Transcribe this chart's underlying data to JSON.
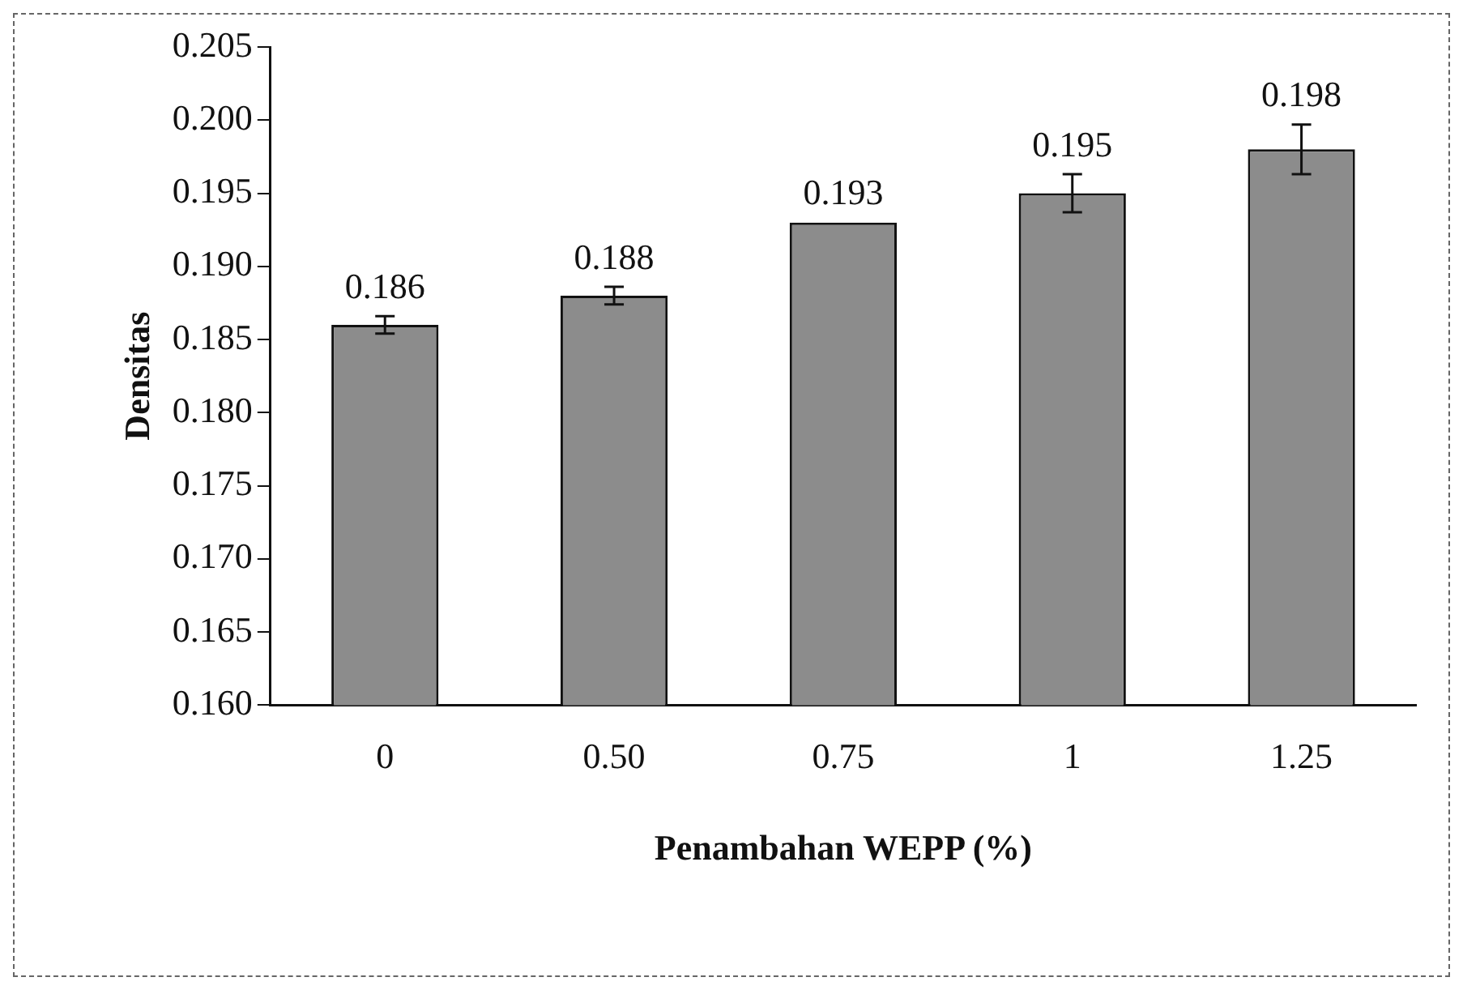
{
  "chart_data": {
    "type": "bar",
    "xlabel": "Penambahan WEPP (%)",
    "ylabel": "Densitas",
    "categories": [
      "0",
      "0.50",
      "0.75",
      "1",
      "1.25"
    ],
    "values": [
      0.186,
      0.188,
      0.193,
      0.195,
      0.198
    ],
    "errors": [
      0.0006,
      0.0006,
      null,
      0.0013,
      0.0017
    ],
    "color": "#8c8c8c",
    "ylim": [
      0.16,
      0.205
    ],
    "yticks": [
      {
        "value": 0.16,
        "label": "0.160"
      },
      0.165,
      {
        "value": 0.17,
        "label": "0.170"
      },
      0.175,
      {
        "value": 0.18,
        "label": "0.180"
      },
      0.185,
      {
        "value": 0.19,
        "label": "0.190"
      },
      0.195,
      {
        "value": 0.2,
        "label": "0.200"
      },
      0.205
    ],
    "grid": false,
    "data_labels": true
  }
}
